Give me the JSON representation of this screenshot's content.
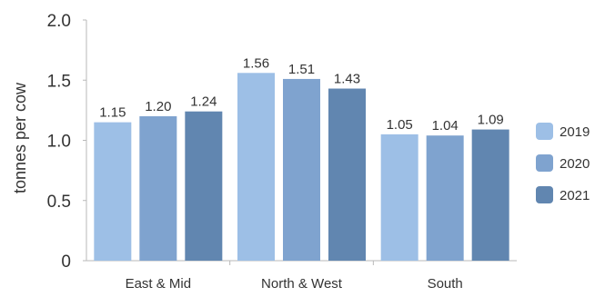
{
  "chart_data": {
    "type": "bar",
    "title": "",
    "xlabel": "",
    "ylabel": "tonnes per cow",
    "ylim": [
      0,
      2.0
    ],
    "yticks": [
      "0",
      "0.5",
      "1.0",
      "1.5",
      "2.0"
    ],
    "grid": false,
    "legend_position": "right",
    "categories": [
      "East & Mid",
      "North & West",
      "South"
    ],
    "series": [
      {
        "name": "2019",
        "color": "#9dbfe6",
        "values": [
          1.15,
          1.56,
          1.05
        ],
        "labels": [
          "1.15",
          "1.56",
          "1.05"
        ]
      },
      {
        "name": "2020",
        "color": "#7fa3cf",
        "values": [
          1.2,
          1.51,
          1.04
        ],
        "labels": [
          "1.20",
          "1.51",
          "1.04"
        ]
      },
      {
        "name": "2021",
        "color": "#6186b0",
        "values": [
          1.24,
          1.43,
          1.09
        ],
        "labels": [
          "1.24",
          "1.43",
          "1.09"
        ]
      }
    ]
  }
}
